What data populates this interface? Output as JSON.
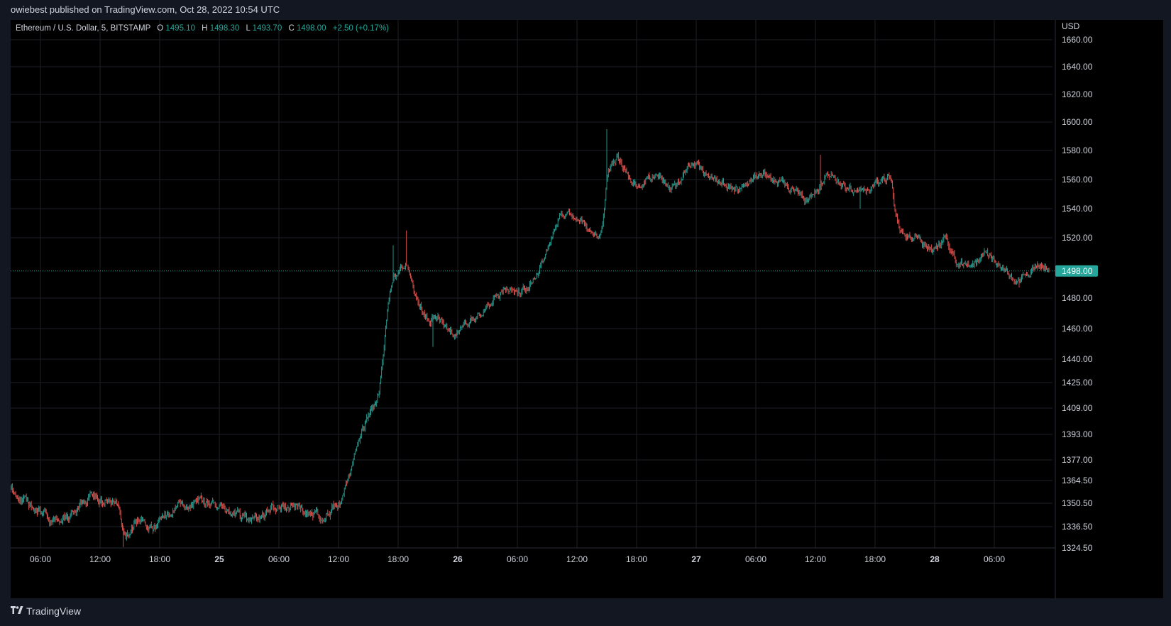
{
  "header": {
    "publish_text": "owiebest published on TradingView.com, Oct 28, 2022 10:54 UTC"
  },
  "legend": {
    "symbol": "Ethereum / U.S. Dollar, 5, BITSTAMP",
    "o_label": "O",
    "o_value": "1495.10",
    "h_label": "H",
    "h_value": "1498.30",
    "l_label": "L",
    "l_value": "1493.70",
    "c_label": "C",
    "c_value": "1498.00",
    "change": "+2.50 (+0.17%)"
  },
  "footer": {
    "brand": "TradingView",
    "logo_icon": "tradingview-logo-icon"
  },
  "colors": {
    "up": "#26a69a",
    "down": "#ef5350",
    "grid": "#1c1f26",
    "text": "#d1d4dc",
    "price_badge": "#26a69a"
  },
  "chart_data": {
    "type": "candlestick",
    "currency_label": "USD",
    "last_price": 1498.0,
    "last_price_label": "1498.00",
    "y_ticks": [
      {
        "v": 1660.0,
        "label": "1660.00"
      },
      {
        "v": 1640.0,
        "label": "1640.00"
      },
      {
        "v": 1620.0,
        "label": "1620.00"
      },
      {
        "v": 1600.0,
        "label": "1600.00"
      },
      {
        "v": 1580.0,
        "label": "1580.00"
      },
      {
        "v": 1560.0,
        "label": "1560.00"
      },
      {
        "v": 1540.0,
        "label": "1540.00"
      },
      {
        "v": 1520.0,
        "label": "1520.00"
      },
      {
        "v": 1480.0,
        "label": "1480.00"
      },
      {
        "v": 1460.0,
        "label": "1460.00"
      },
      {
        "v": 1440.0,
        "label": "1440.00"
      },
      {
        "v": 1425.0,
        "label": "1425.00"
      },
      {
        "v": 1409.0,
        "label": "1409.00"
      },
      {
        "v": 1393.0,
        "label": "1393.00"
      },
      {
        "v": 1377.0,
        "label": "1377.00"
      },
      {
        "v": 1364.5,
        "label": "1364.50"
      },
      {
        "v": 1350.5,
        "label": "1350.50"
      },
      {
        "v": 1336.5,
        "label": "1336.50"
      },
      {
        "v": 1324.5,
        "label": "1324.50"
      }
    ],
    "time_start_hours": 3,
    "time_end_hours": 107.5,
    "x_ticks": [
      {
        "h": 6,
        "label": "06:00",
        "bold": false
      },
      {
        "h": 12,
        "label": "12:00",
        "bold": false
      },
      {
        "h": 18,
        "label": "18:00",
        "bold": false
      },
      {
        "h": 24,
        "label": "25",
        "bold": true
      },
      {
        "h": 30,
        "label": "06:00",
        "bold": false
      },
      {
        "h": 36,
        "label": "12:00",
        "bold": false
      },
      {
        "h": 42,
        "label": "18:00",
        "bold": false
      },
      {
        "h": 48,
        "label": "26",
        "bold": true
      },
      {
        "h": 54,
        "label": "06:00",
        "bold": false
      },
      {
        "h": 60,
        "label": "12:00",
        "bold": false
      },
      {
        "h": 66,
        "label": "18:00",
        "bold": false
      },
      {
        "h": 72,
        "label": "27",
        "bold": true
      },
      {
        "h": 78,
        "label": "06:00",
        "bold": false
      },
      {
        "h": 84,
        "label": "12:00",
        "bold": false
      },
      {
        "h": 90,
        "label": "18:00",
        "bold": false
      },
      {
        "h": 96,
        "label": "28",
        "bold": true
      },
      {
        "h": 102,
        "label": "06:00",
        "bold": false
      }
    ],
    "price_path": [
      [
        3,
        1358
      ],
      [
        4,
        1352
      ],
      [
        5,
        1348
      ],
      [
        6,
        1345
      ],
      [
        7,
        1340
      ],
      [
        8,
        1339
      ],
      [
        9,
        1345
      ],
      [
        10,
        1350
      ],
      [
        11,
        1355
      ],
      [
        12,
        1352
      ],
      [
        13,
        1348
      ],
      [
        13.8,
        1350
      ],
      [
        14.3,
        1328
      ],
      [
        15,
        1337
      ],
      [
        16,
        1341
      ],
      [
        17,
        1336
      ],
      [
        18,
        1340
      ],
      [
        19,
        1343
      ],
      [
        20,
        1350
      ],
      [
        21,
        1348
      ],
      [
        22,
        1353
      ],
      [
        23,
        1350
      ],
      [
        24,
        1348
      ],
      [
        25,
        1345
      ],
      [
        26,
        1343
      ],
      [
        27,
        1340
      ],
      [
        28,
        1343
      ],
      [
        29,
        1347
      ],
      [
        30,
        1349
      ],
      [
        31,
        1348
      ],
      [
        32,
        1347
      ],
      [
        33,
        1344
      ],
      [
        34,
        1343
      ],
      [
        35,
        1346
      ],
      [
        36,
        1350
      ],
      [
        37,
        1368
      ],
      [
        38,
        1390
      ],
      [
        39,
        1405
      ],
      [
        40,
        1420
      ],
      [
        41,
        1485
      ],
      [
        41.5,
        1495
      ],
      [
        42,
        1500
      ],
      [
        42.8,
        1505
      ],
      [
        43.5,
        1480
      ],
      [
        44,
        1475
      ],
      [
        45,
        1465
      ],
      [
        46,
        1468
      ],
      [
        47,
        1456
      ],
      [
        48,
        1458
      ],
      [
        49,
        1465
      ],
      [
        50,
        1470
      ],
      [
        51,
        1478
      ],
      [
        52,
        1483
      ],
      [
        53,
        1487
      ],
      [
        54,
        1483
      ],
      [
        55,
        1490
      ],
      [
        56,
        1498
      ],
      [
        57,
        1515
      ],
      [
        58,
        1535
      ],
      [
        59,
        1537
      ],
      [
        60,
        1533
      ],
      [
        61,
        1525
      ],
      [
        62,
        1518
      ],
      [
        62.5,
        1535
      ],
      [
        63,
        1570
      ],
      [
        64,
        1575
      ],
      [
        65,
        1562
      ],
      [
        66,
        1555
      ],
      [
        67,
        1560
      ],
      [
        68,
        1565
      ],
      [
        69,
        1556
      ],
      [
        70,
        1555
      ],
      [
        71,
        1570
      ],
      [
        72,
        1572
      ],
      [
        73,
        1562
      ],
      [
        74,
        1560
      ],
      [
        75,
        1554
      ],
      [
        76,
        1552
      ],
      [
        77,
        1558
      ],
      [
        78,
        1565
      ],
      [
        79,
        1563
      ],
      [
        80,
        1558
      ],
      [
        81,
        1555
      ],
      [
        82,
        1550
      ],
      [
        83,
        1546
      ],
      [
        84,
        1552
      ],
      [
        85,
        1565
      ],
      [
        86,
        1560
      ],
      [
        87,
        1555
      ],
      [
        88,
        1550
      ],
      [
        89,
        1552
      ],
      [
        90,
        1557
      ],
      [
        91,
        1560
      ],
      [
        91.5,
        1562
      ],
      [
        92,
        1530
      ],
      [
        93,
        1520
      ],
      [
        94,
        1520
      ],
      [
        95,
        1515
      ],
      [
        96,
        1512
      ],
      [
        97,
        1520
      ],
      [
        98,
        1505
      ],
      [
        99,
        1502
      ],
      [
        100,
        1503
      ],
      [
        101,
        1510
      ],
      [
        102,
        1505
      ],
      [
        103,
        1498
      ],
      [
        104,
        1490
      ],
      [
        105,
        1495
      ],
      [
        106,
        1502
      ],
      [
        107,
        1500
      ],
      [
        107.5,
        1498
      ]
    ],
    "extremes": [
      {
        "h": 14.3,
        "low": 1325
      },
      {
        "h": 41.5,
        "high": 1515
      },
      {
        "h": 42.8,
        "high": 1525
      },
      {
        "h": 63,
        "high": 1595
      },
      {
        "h": 88.5,
        "low": 1540
      },
      {
        "h": 104.5,
        "low": 1487
      },
      {
        "h": 45.5,
        "low": 1448
      },
      {
        "h": 84.5,
        "high": 1577
      }
    ],
    "ylim": [
      1324.5,
      1660.0
    ],
    "grid": true,
    "legend_position": "top-left"
  }
}
